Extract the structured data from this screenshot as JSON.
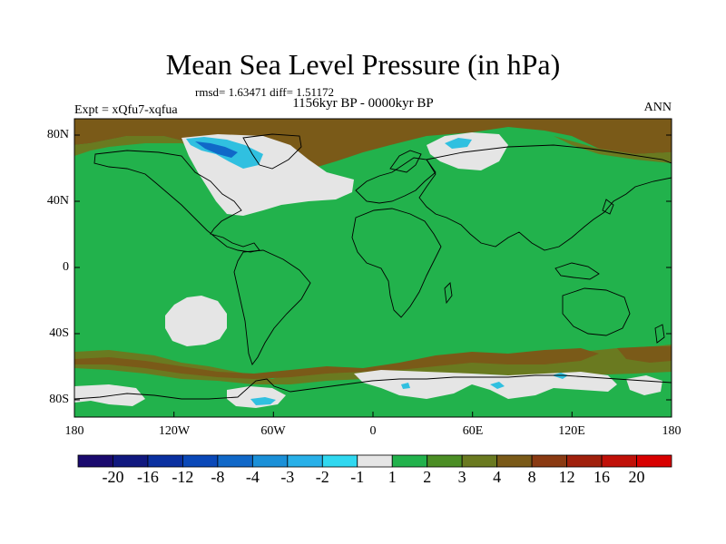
{
  "header": {
    "title": "Mean Sea Level Pressure (in hPa)",
    "stats": "rmsd= 1.63471 diff= 1.51172",
    "experiment": "Expt = xQfu7-xqfua",
    "period": "1156kyr BP - 0000kyr BP",
    "season": "ANN"
  },
  "map": {
    "lat_ticks": [
      "80N",
      "40N",
      "0",
      "40S",
      "80S"
    ],
    "lon_ticks": [
      "180",
      "120W",
      "60W",
      "0",
      "60E",
      "120E",
      "180"
    ],
    "background_color": "#22b24c",
    "colors": {
      "band_1_2": "#22b24c",
      "band_2_3": "#4b8e25",
      "band_3_4": "#6a7a20",
      "band_4_8": "#7a5a18",
      "band_m1_1": "#e5e5e5",
      "band_m2_m1": "#30c0e0",
      "coastline": "#000000"
    }
  },
  "legend": {
    "labels": [
      "-20",
      "-16",
      "-12",
      "-8",
      "-4",
      "-3",
      "-2",
      "-1",
      "1",
      "2",
      "3",
      "4",
      "8",
      "12",
      "16",
      "20"
    ],
    "colors": [
      "#1a0a6e",
      "#10187f",
      "#0a30a0",
      "#0a48b8",
      "#1068c8",
      "#1a90d8",
      "#28b0e8",
      "#30d8f0",
      "#e5e5e5",
      "#22b24c",
      "#4b8e25",
      "#6a7a20",
      "#7a5a18",
      "#8a3a12",
      "#a0200c",
      "#c01008",
      "#d80000"
    ]
  }
}
